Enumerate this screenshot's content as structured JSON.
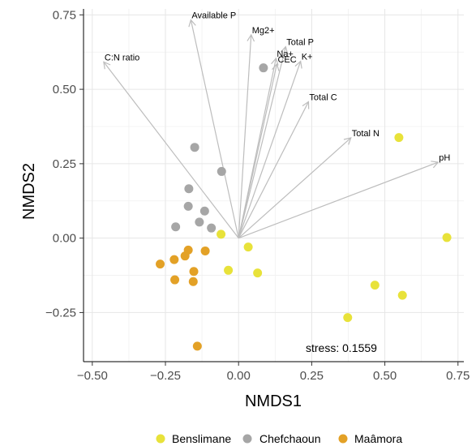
{
  "chart_data": {
    "type": "scatter",
    "xlabel": "NMDS1",
    "ylabel": "NMDS2",
    "xlim": [
      -0.53,
      0.77
    ],
    "ylim": [
      -0.415,
      0.77
    ],
    "x_ticks": [
      -0.5,
      -0.25,
      0.0,
      0.25,
      0.5,
      0.75
    ],
    "x_tick_labels": [
      "−0.50",
      "−0.25",
      "0.00",
      "0.25",
      "0.50",
      "0.75"
    ],
    "y_ticks": [
      -0.25,
      0.0,
      0.25,
      0.5,
      0.75
    ],
    "y_tick_labels": [
      "−0.25",
      "0.00",
      "0.25",
      "0.50",
      "0.75"
    ],
    "grid": true,
    "legend_position": "bottom",
    "series": [
      {
        "name": "Benslimane",
        "color": "#E8E23A",
        "points": [
          {
            "x": -0.06,
            "y": 0.013
          },
          {
            "x": 0.033,
            "y": -0.03
          },
          {
            "x": -0.035,
            "y": -0.108
          },
          {
            "x": 0.065,
            "y": -0.117
          },
          {
            "x": 0.548,
            "y": 0.338
          },
          {
            "x": 0.712,
            "y": 0.002
          },
          {
            "x": 0.466,
            "y": -0.158
          },
          {
            "x": 0.56,
            "y": -0.192
          },
          {
            "x": 0.373,
            "y": -0.267
          }
        ]
      },
      {
        "name": "Chefchaoun",
        "color": "#A6A6A6",
        "points": [
          {
            "x": 0.085,
            "y": 0.572
          },
          {
            "x": -0.15,
            "y": 0.305
          },
          {
            "x": -0.058,
            "y": 0.224
          },
          {
            "x": -0.17,
            "y": 0.166
          },
          {
            "x": -0.172,
            "y": 0.107
          },
          {
            "x": -0.116,
            "y": 0.091
          },
          {
            "x": -0.134,
            "y": 0.054
          },
          {
            "x": -0.093,
            "y": 0.034
          },
          {
            "x": -0.215,
            "y": 0.038
          }
        ]
      },
      {
        "name": "Maâmora",
        "color": "#E3A126",
        "points": [
          {
            "x": -0.268,
            "y": -0.087
          },
          {
            "x": -0.22,
            "y": -0.072
          },
          {
            "x": -0.183,
            "y": -0.06
          },
          {
            "x": -0.172,
            "y": -0.04
          },
          {
            "x": -0.114,
            "y": -0.043
          },
          {
            "x": -0.153,
            "y": -0.112
          },
          {
            "x": -0.218,
            "y": -0.14
          },
          {
            "x": -0.155,
            "y": -0.146
          },
          {
            "x": -0.141,
            "y": -0.363
          }
        ]
      }
    ],
    "vectors": [
      {
        "label": "Available P",
        "x": -0.163,
        "y": 0.733
      },
      {
        "label": "Mg2+",
        "x": 0.043,
        "y": 0.683
      },
      {
        "label": "Total P",
        "x": 0.161,
        "y": 0.643
      },
      {
        "label": "Na+",
        "x": 0.128,
        "y": 0.604
      },
      {
        "label": "CEC",
        "x": 0.131,
        "y": 0.585
      },
      {
        "label": "K+",
        "x": 0.212,
        "y": 0.594
      },
      {
        "label": "C:N ratio",
        "x": -0.461,
        "y": 0.592
      },
      {
        "label": "Total C",
        "x": 0.239,
        "y": 0.458
      },
      {
        "label": "Total N",
        "x": 0.384,
        "y": 0.337
      },
      {
        "label": "pH",
        "x": 0.682,
        "y": 0.255
      }
    ],
    "annotation": "stress: 0.1559"
  },
  "legend": {
    "items": [
      {
        "label": "Benslimane",
        "color": "#E8E23A"
      },
      {
        "label": "Chefchaoun",
        "color": "#A6A6A6"
      },
      {
        "label": "Maâmora",
        "color": "#E3A126"
      }
    ]
  }
}
